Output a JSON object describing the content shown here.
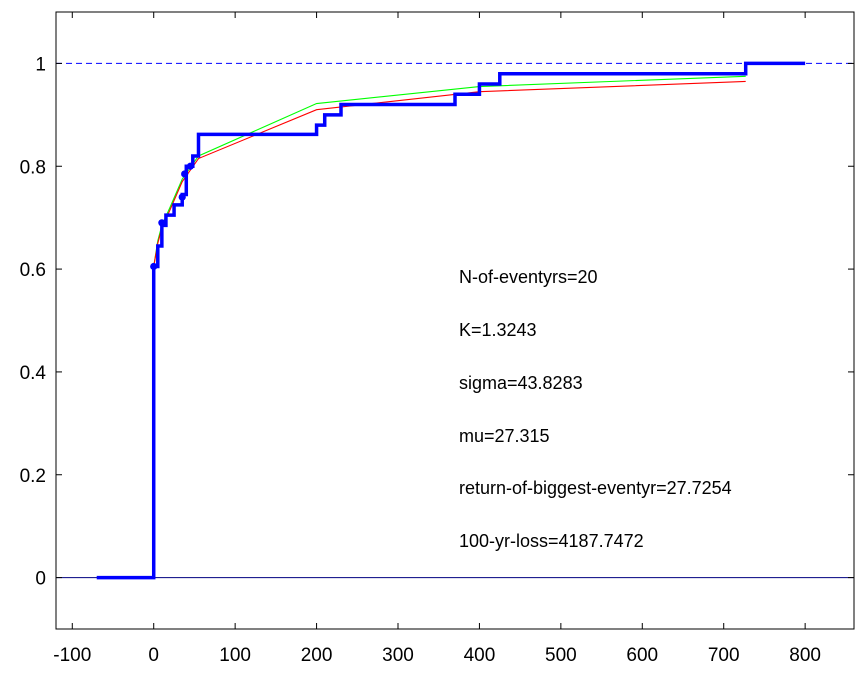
{
  "chart_data": {
    "type": "line",
    "title": "",
    "xlabel": "",
    "ylabel": "",
    "xlim": [
      -120,
      860
    ],
    "ylim": [
      -0.1,
      1.1
    ],
    "xticks": [
      -100,
      0,
      100,
      200,
      300,
      400,
      500,
      600,
      700,
      800
    ],
    "yticks": [
      0,
      0.2,
      0.4,
      0.6,
      0.8,
      1
    ],
    "xtick_labels": [
      "-100",
      "0",
      "100",
      "200",
      "300",
      "400",
      "500",
      "600",
      "700",
      "800"
    ],
    "ytick_labels": [
      "0",
      "0.2",
      "0.4",
      "0.6",
      "0.8",
      "1"
    ],
    "grid": false,
    "reference_lines": [
      {
        "y": 1,
        "style": "dashed",
        "color": "#0000ff"
      },
      {
        "y": 0,
        "style": "solid",
        "color": "#000080"
      }
    ],
    "series": [
      {
        "style": "step",
        "color": "#0000ff",
        "x": [
          -70,
          0,
          0,
          5,
          10,
          15,
          25,
          35,
          40,
          48,
          55,
          200,
          210,
          230,
          370,
          400,
          425,
          727,
          727,
          800
        ],
        "y": [
          0,
          0,
          0.605,
          0.645,
          0.685,
          0.705,
          0.725,
          0.745,
          0.8,
          0.82,
          0.862,
          0.88,
          0.9,
          0.92,
          0.94,
          0.96,
          0.98,
          0.98,
          1.0,
          1.0
        ]
      },
      {
        "style": "points",
        "color": "#0000ff",
        "x": [
          0,
          10,
          35,
          38,
          45
        ],
        "y": [
          0.605,
          0.69,
          0.74,
          0.785,
          0.8
        ]
      },
      {
        "style": "line",
        "color": "#00ff00",
        "x": [
          0,
          5,
          10,
          20,
          35,
          55,
          200,
          400,
          727
        ],
        "y": [
          0.605,
          0.655,
          0.685,
          0.72,
          0.775,
          0.82,
          0.922,
          0.955,
          0.975
        ]
      },
      {
        "style": "line",
        "color": "#ff0000",
        "x": [
          0,
          5,
          10,
          20,
          35,
          55,
          200,
          400,
          727
        ],
        "y": [
          0.605,
          0.65,
          0.68,
          0.715,
          0.77,
          0.815,
          0.91,
          0.945,
          0.965
        ]
      }
    ],
    "annotations": [
      "N-of-eventyrs=20",
      "K=1.3243",
      "sigma=43.8283",
      "mu=27.315",
      "return-of-biggest-eventyr=27.7254",
      "100-yr-loss=4187.7472"
    ]
  }
}
